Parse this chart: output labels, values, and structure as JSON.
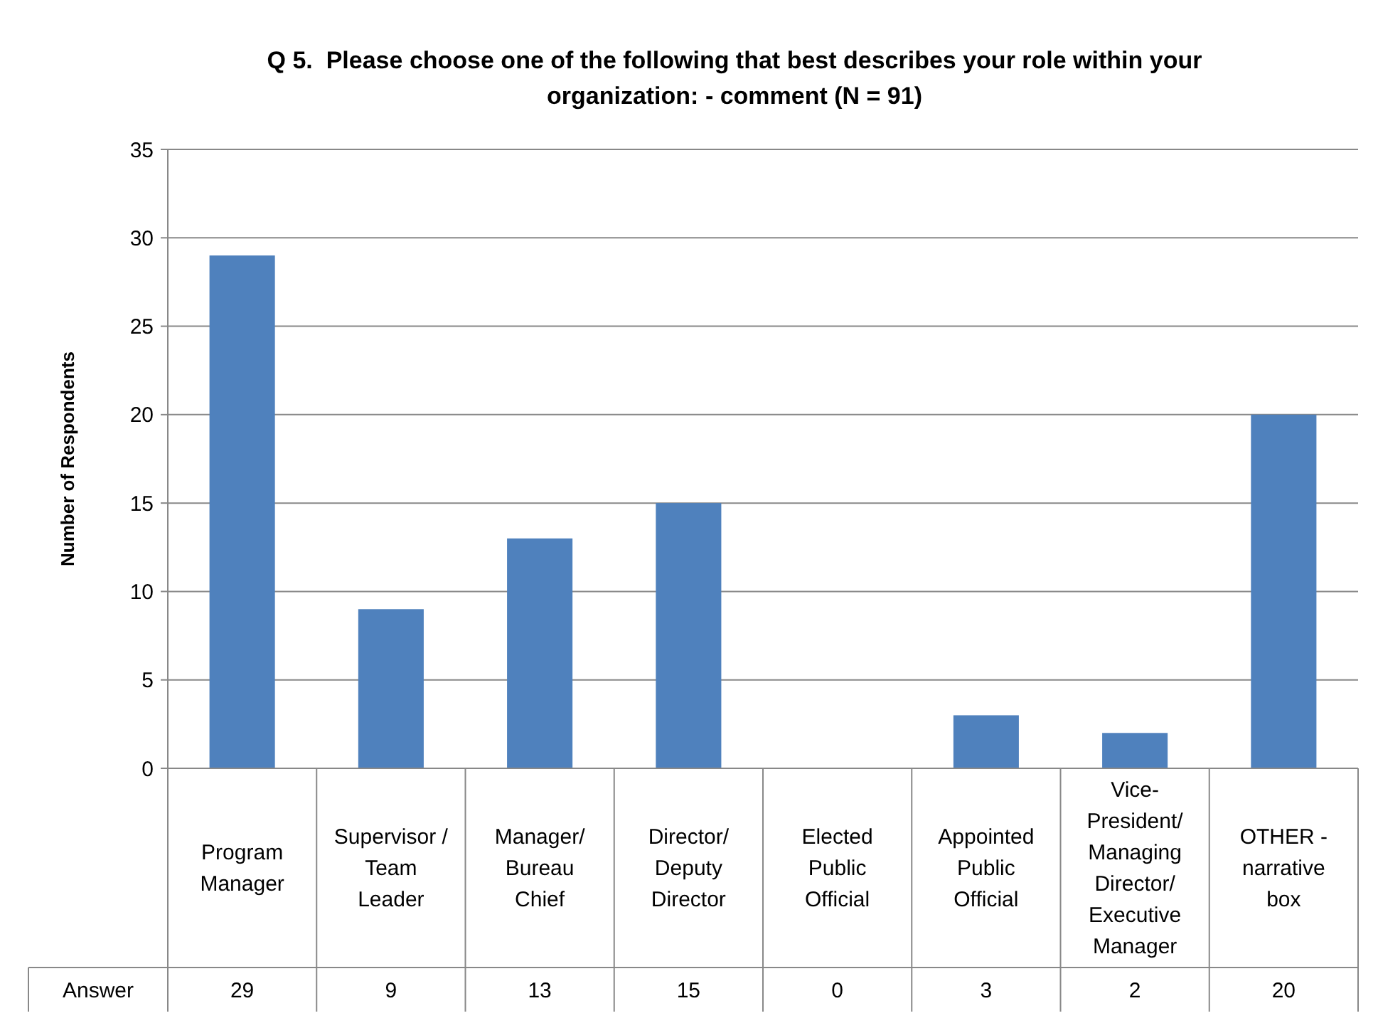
{
  "chart_data": {
    "type": "bar",
    "title": "Q 5.  Please choose one of the following that best describes your role within your\norganization: - comment (N = 91)",
    "ylabel": "Number of Respondents",
    "categories": [
      "Program\nManager",
      "Supervisor /\nTeam\nLeader",
      "Manager/\nBureau\nChief",
      "Director/\nDeputy\nDirector",
      "Elected\nPublic\nOfficial",
      "Appointed\nPublic\nOfficial",
      "Vice-\nPresident/\nManaging\nDirector/\nExecutive\nManager",
      "OTHER -\nnarrative\nbox"
    ],
    "series": [
      {
        "name": "Answer",
        "color": "#4f81bd",
        "values": [
          29,
          9,
          13,
          15,
          0,
          3,
          2,
          20
        ]
      }
    ],
    "ylim": [
      0,
      35
    ],
    "yticks": [
      0,
      5,
      10,
      15,
      20,
      25,
      30,
      35
    ],
    "grid": "y",
    "data_labels": true
  }
}
